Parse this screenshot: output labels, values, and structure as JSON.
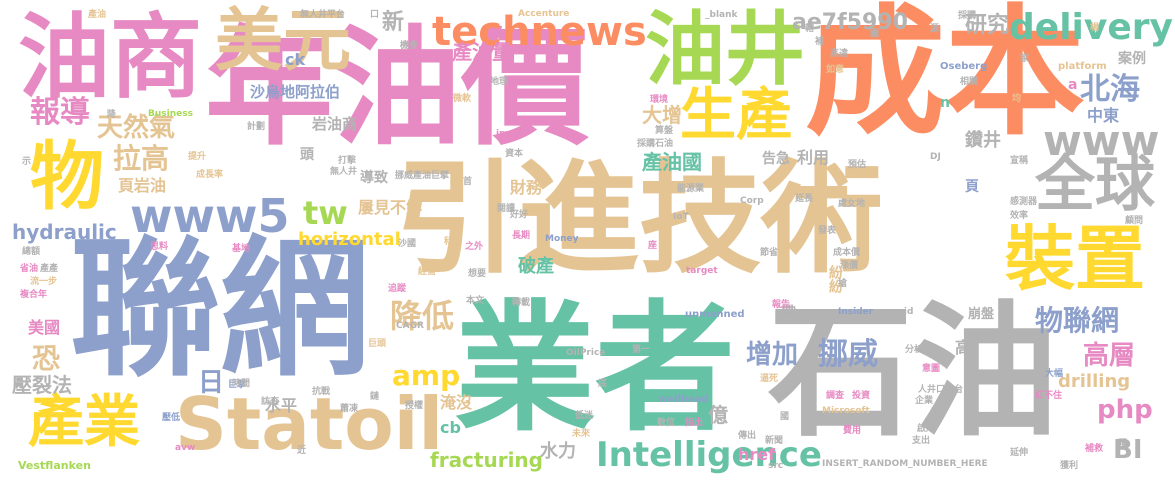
{
  "words": [
    {
      "text": "聯網",
      "color": "#8da0cb"
    },
    {
      "text": "引進技術",
      "color": "#e5c494"
    },
    {
      "text": "年油價",
      "color": "#e78ac3"
    },
    {
      "text": "成本",
      "color": "#fc8d62"
    },
    {
      "text": "石油",
      "color": "#b3b3b3"
    },
    {
      "text": "業者",
      "color": "#66c2a5"
    },
    {
      "text": "油商",
      "color": "#e78ac3"
    },
    {
      "text": "油井",
      "color": "#a6d854"
    },
    {
      "text": "美元",
      "color": "#e5c494"
    },
    {
      "text": "物",
      "color": "#ffd92f"
    },
    {
      "text": "Statoil",
      "color": "#e5c494"
    },
    {
      "text": "生產",
      "color": "#ffd92f"
    },
    {
      "text": "裝置",
      "color": "#ffd92f"
    },
    {
      "text": "全球",
      "color": "#b3b3b3"
    },
    {
      "text": "technews",
      "color": "#fc8d62"
    },
    {
      "text": "產業",
      "color": "#ffd92f"
    },
    {
      "text": "www5",
      "color": "#8da0cb"
    },
    {
      "text": "www",
      "color": "#b3b3b3"
    },
    {
      "text": "delivery",
      "color": "#66c2a5"
    },
    {
      "text": "北海",
      "color": "#8da0cb"
    },
    {
      "text": "報導",
      "color": "#e78ac3"
    },
    {
      "text": "天然氣",
      "color": "#e5c494"
    },
    {
      "text": "拉高",
      "color": "#e5c494"
    },
    {
      "text": "物聯網",
      "color": "#8da0cb"
    },
    {
      "text": "Intelligence",
      "color": "#66c2a5"
    },
    {
      "text": "挪威",
      "color": "#8da0cb"
    },
    {
      "text": "降低",
      "color": "#e5c494"
    },
    {
      "text": "amp",
      "color": "#ffd92f"
    },
    {
      "text": "增加",
      "color": "#8da0cb"
    },
    {
      "text": "高層",
      "color": "#e78ac3"
    },
    {
      "text": "php",
      "color": "#e78ac3"
    },
    {
      "text": "tw",
      "color": "#a6d854"
    },
    {
      "text": "恐",
      "color": "#e5c494"
    },
    {
      "text": "日",
      "color": "#8da0cb"
    },
    {
      "text": "BI",
      "color": "#b3b3b3"
    },
    {
      "text": "ae7f5990",
      "color": "#b3b3b3"
    },
    {
      "text": "研究",
      "color": "#b3b3b3"
    },
    {
      "text": "產油量",
      "color": "#e78ac3"
    },
    {
      "text": "大增",
      "color": "#e5c494"
    },
    {
      "text": "產油國",
      "color": "#66c2a5"
    },
    {
      "text": "鑽井",
      "color": "#b3b3b3"
    },
    {
      "text": "中東",
      "color": "#8da0cb"
    },
    {
      "text": "案例",
      "color": "#b3b3b3"
    },
    {
      "text": "新",
      "color": "#b3b3b3"
    },
    {
      "text": "沙烏地阿拉伯",
      "color": "#8da0cb"
    },
    {
      "text": "岩油商",
      "color": "#b3b3b3"
    },
    {
      "text": "頁岩油",
      "color": "#e5c494"
    },
    {
      "text": "hydraulic",
      "color": "#8da0cb"
    },
    {
      "text": "horizontal",
      "color": "#ffd92f"
    },
    {
      "text": "屢見不鮮",
      "color": "#e5c494"
    },
    {
      "text": "財務",
      "color": "#e5c494"
    },
    {
      "text": "利用",
      "color": "#b3b3b3"
    },
    {
      "text": "破產",
      "color": "#66c2a5"
    },
    {
      "text": "fracturing",
      "color": "#a6d854"
    },
    {
      "text": "水力",
      "color": "#b3b3b3"
    },
    {
      "text": "壓裂法",
      "color": "#b3b3b3"
    },
    {
      "text": "美國",
      "color": "#e78ac3"
    },
    {
      "text": "drilling",
      "color": "#e5c494"
    },
    {
      "text": "淹沒",
      "color": "#e5c494"
    },
    {
      "text": "水平",
      "color": "#b3b3b3"
    },
    {
      "text": "億",
      "color": "#b3b3b3"
    },
    {
      "text": "cb",
      "color": "#66c2a5"
    },
    {
      "text": "href",
      "color": "#e78ac3"
    },
    {
      "text": "紛紛",
      "color": "#e5c494"
    },
    {
      "text": "導致",
      "color": "#b3b3b3"
    },
    {
      "text": "頭",
      "color": "#b3b3b3"
    },
    {
      "text": "ck",
      "color": "#8da0cb"
    },
    {
      "text": "帶",
      "color": "#b3b3b3"
    },
    {
      "text": "高",
      "color": "#b3b3b3"
    },
    {
      "text": "頁",
      "color": "#8da0cb"
    },
    {
      "text": "a",
      "color": "#e78ac3"
    },
    {
      "text": "n",
      "color": "#66c2a5"
    },
    {
      "text": "崩盤",
      "color": "#b3b3b3"
    },
    {
      "text": "告急",
      "color": "#b3b3b3"
    },
    {
      "text": "產油",
      "color": "#e5c494"
    },
    {
      "text": "無人井平台",
      "color": "#b3b3b3"
    },
    {
      "text": "Accenture",
      "color": "#e5c494"
    },
    {
      "text": "_blank",
      "color": "#b3b3b3"
    },
    {
      "text": "採購",
      "color": "#b3b3b3"
    },
    {
      "text": "Business",
      "color": "#a6d854"
    },
    {
      "text": "微軟",
      "color": "#e5c494"
    },
    {
      "text": "地理",
      "color": "#b3b3b3"
    },
    {
      "text": "Oseberg",
      "color": "#8da0cb"
    },
    {
      "text": "platform",
      "color": "#e5c494"
    },
    {
      "text": "如意",
      "color": "#e5c494"
    },
    {
      "text": "相關",
      "color": "#b3b3b3"
    },
    {
      "text": "計劃",
      "color": "#b3b3b3"
    },
    {
      "text": "提升",
      "color": "#e5c494"
    },
    {
      "text": "成長率",
      "color": "#e5c494"
    },
    {
      "text": "打擊",
      "color": "#b3b3b3"
    },
    {
      "text": "無人井",
      "color": "#b3b3b3"
    },
    {
      "text": "挪威產油巨擘",
      "color": "#b3b3b3"
    },
    {
      "text": "能源業",
      "color": "#b3b3b3"
    },
    {
      "text": "採購石油",
      "color": "#b3b3b3"
    },
    {
      "text": "資本",
      "color": "#b3b3b3"
    },
    {
      "text": "閱讀",
      "color": "#b3b3b3"
    },
    {
      "text": "IoT",
      "color": "#b3b3b3"
    },
    {
      "text": "Corp",
      "color": "#b3b3b3"
    },
    {
      "text": "延長",
      "color": "#b3b3b3"
    },
    {
      "text": "處女地",
      "color": "#b3b3b3"
    },
    {
      "text": "預估",
      "color": "#b3b3b3"
    },
    {
      "text": "DJ",
      "color": "#b3b3b3"
    },
    {
      "text": "宣稱",
      "color": "#b3b3b3"
    },
    {
      "text": "感測器",
      "color": "#b3b3b3"
    },
    {
      "text": "效率",
      "color": "#b3b3b3"
    },
    {
      "text": "顧問",
      "color": "#b3b3b3"
    },
    {
      "text": "總額",
      "color": "#b3b3b3"
    },
    {
      "text": "思料",
      "color": "#e78ac3"
    },
    {
      "text": "基地",
      "color": "#e78ac3"
    },
    {
      "text": "沙國",
      "color": "#b3b3b3"
    },
    {
      "text": "科技",
      "color": "#e5c494"
    },
    {
      "text": "之外",
      "color": "#e78ac3"
    },
    {
      "text": "長期",
      "color": "#e78ac3"
    },
    {
      "text": "Money",
      "color": "#8da0cb"
    },
    {
      "text": "節省",
      "color": "#b3b3b3"
    },
    {
      "text": "發表",
      "color": "#b3b3b3"
    },
    {
      "text": "成本價",
      "color": "#b3b3b3"
    },
    {
      "text": "target",
      "color": "#e78ac3"
    },
    {
      "text": "漲價",
      "color": "#b3b3b3"
    },
    {
      "text": "經營",
      "color": "#e5c494"
    },
    {
      "text": "想要",
      "color": "#b3b3b3"
    },
    {
      "text": "追蹤",
      "color": "#e78ac3"
    },
    {
      "text": "本文",
      "color": "#b3b3b3"
    },
    {
      "text": "轉載",
      "color": "#b3b3b3"
    },
    {
      "text": "報告",
      "color": "#e78ac3"
    },
    {
      "text": "unmanned",
      "color": "#8da0cb"
    },
    {
      "text": "Insider",
      "color": "#8da0cb"
    },
    {
      "text": "zoneid",
      "color": "#b3b3b3"
    },
    {
      "text": "CAGR",
      "color": "#b3b3b3"
    },
    {
      "text": "巨頭",
      "color": "#e5c494"
    },
    {
      "text": "OilPrice",
      "color": "#b3b3b3"
    },
    {
      "text": "第一",
      "color": "#b3b3b3"
    },
    {
      "text": "分析",
      "color": "#b3b3b3"
    },
    {
      "text": "意圖",
      "color": "#e78ac3"
    },
    {
      "text": "巨擘",
      "color": "#8da0cb"
    },
    {
      "text": "時間",
      "color": "#b3b3b3"
    },
    {
      "text": "抗戰",
      "color": "#b3b3b3"
    },
    {
      "text": "訪查",
      "color": "#b3b3b3"
    },
    {
      "text": "壓低",
      "color": "#8da0cb"
    },
    {
      "text": "蕭凍",
      "color": "#b3b3b3"
    },
    {
      "text": "授權",
      "color": "#b3b3b3"
    },
    {
      "text": "wellhead",
      "color": "#8da0cb"
    },
    {
      "text": "逼死",
      "color": "#e5c494"
    },
    {
      "text": "調查",
      "color": "#e78ac3"
    },
    {
      "text": "投資",
      "color": "#e78ac3"
    },
    {
      "text": "Microsoft",
      "color": "#e5c494"
    },
    {
      "text": "企業",
      "color": "#b3b3b3"
    },
    {
      "text": "人井口平台",
      "color": "#b3b3b3"
    },
    {
      "text": "大幅",
      "color": "#8da0cb"
    },
    {
      "text": "紅不住",
      "color": "#e78ac3"
    },
    {
      "text": "低迷",
      "color": "#b3b3b3"
    },
    {
      "text": "數位",
      "color": "#b3b3b3"
    },
    {
      "text": "指出",
      "color": "#e78ac3"
    },
    {
      "text": "傳出",
      "color": "#b3b3b3"
    },
    {
      "text": "費用",
      "color": "#e78ac3"
    },
    {
      "text": "啟用",
      "color": "#b3b3b3"
    },
    {
      "text": "支出",
      "color": "#b3b3b3"
    },
    {
      "text": "新聞",
      "color": "#b3b3b3"
    },
    {
      "text": "延伸",
      "color": "#b3b3b3"
    },
    {
      "text": "未來",
      "color": "#e5c494"
    },
    {
      "text": "avw",
      "color": "#e78ac3"
    },
    {
      "text": "src",
      "color": "#b3b3b3"
    },
    {
      "text": "INSERT_RANDOM_NUMBER_HERE",
      "color": "#b3b3b3"
    },
    {
      "text": "Vestflanken",
      "color": "#a6d854"
    },
    {
      "text": "獲利",
      "color": "#b3b3b3"
    },
    {
      "text": "補救",
      "color": "#e78ac3"
    },
    {
      "text": "複合年",
      "color": "#e78ac3"
    },
    {
      "text": "流一步",
      "color": "#e5c494"
    },
    {
      "text": "省油",
      "color": "#e78ac3"
    },
    {
      "text": "產產",
      "color": "#b3b3b3"
    },
    {
      "text": "示",
      "color": "#b3b3b3"
    },
    {
      "text": "口",
      "color": "#b3b3b3"
    },
    {
      "text": "好好",
      "color": "#b3b3b3"
    },
    {
      "text": "高達",
      "color": "#b3b3b3"
    },
    {
      "text": "機會",
      "color": "#b3b3b3"
    },
    {
      "text": "環境",
      "color": "#e78ac3"
    },
    {
      "text": "算盤",
      "color": "#b3b3b3"
    },
    {
      "text": "img",
      "color": "#e78ac3"
    },
    {
      "text": "首",
      "color": "#b3b3b3"
    },
    {
      "text": "底",
      "color": "#b3b3b3"
    },
    {
      "text": "近",
      "color": "#b3b3b3"
    },
    {
      "text": "月",
      "color": "#8da0cb"
    },
    {
      "text": "降",
      "color": "#b3b3b3"
    },
    {
      "text": "座",
      "color": "#e78ac3"
    },
    {
      "text": "鏈",
      "color": "#b3b3b3"
    },
    {
      "text": "獲",
      "color": "#b3b3b3"
    },
    {
      "text": "國",
      "color": "#b3b3b3"
    },
    {
      "text": "圖",
      "color": "#b3b3b3"
    },
    {
      "text": "均",
      "color": "#e5c494"
    },
    {
      "text": "楊",
      "color": "#e5c494"
    },
    {
      "text": "搶",
      "color": "#b3b3b3"
    },
    {
      "text": "轄",
      "color": "#b3b3b3"
    },
    {
      "text": "補",
      "color": "#b3b3b3"
    },
    {
      "text": "家",
      "color": "#b3b3b3"
    },
    {
      "text": "源",
      "color": "#b3b3b3"
    }
  ]
}
